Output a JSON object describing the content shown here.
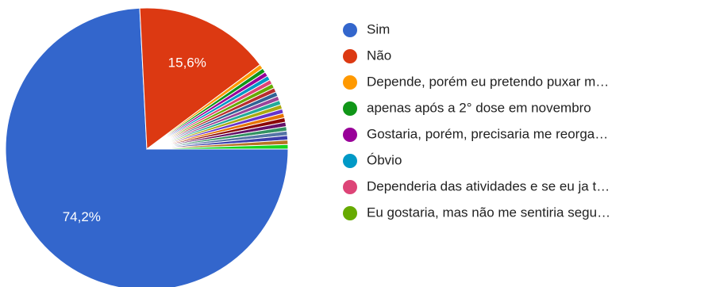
{
  "chart_data": {
    "type": "pie",
    "categories": [
      "Sim",
      "Não",
      "Depende, porém eu pretendo puxar m…",
      "apenas após a 2° dose em novembro",
      "Gostaria, porém, precisaria me reorga…",
      "Óbvio",
      "Dependeria das atividades e se eu ja t…",
      "Eu gostaria, mas não me sentiria segu…",
      null,
      null,
      null,
      null,
      null,
      null,
      null,
      null,
      null,
      null,
      null,
      null,
      null,
      null
    ],
    "values": [
      74.2,
      15.6,
      0.51,
      0.51,
      0.51,
      0.51,
      0.51,
      0.51,
      0.51,
      0.51,
      0.51,
      0.51,
      0.51,
      0.51,
      0.51,
      0.51,
      0.51,
      0.51,
      0.51,
      0.51,
      0.51,
      0.51
    ],
    "value_labels": [
      "74,2%",
      "15,6%",
      null,
      null,
      null,
      null,
      null,
      null,
      null,
      null,
      null,
      null,
      null,
      null,
      null,
      null,
      null,
      null,
      null,
      null,
      null,
      null
    ],
    "colors": [
      "#3366cc",
      "#dc3912",
      "#ff9900",
      "#109618",
      "#990099",
      "#0099c6",
      "#dd4477",
      "#66aa00",
      "#b82e2e",
      "#316395",
      "#994499",
      "#22aa99",
      "#aaaa11",
      "#6633cc",
      "#e67300",
      "#8b0707",
      "#651067",
      "#329262",
      "#5574a6",
      "#3b3eac",
      "#b77322",
      "#16d620"
    ]
  }
}
